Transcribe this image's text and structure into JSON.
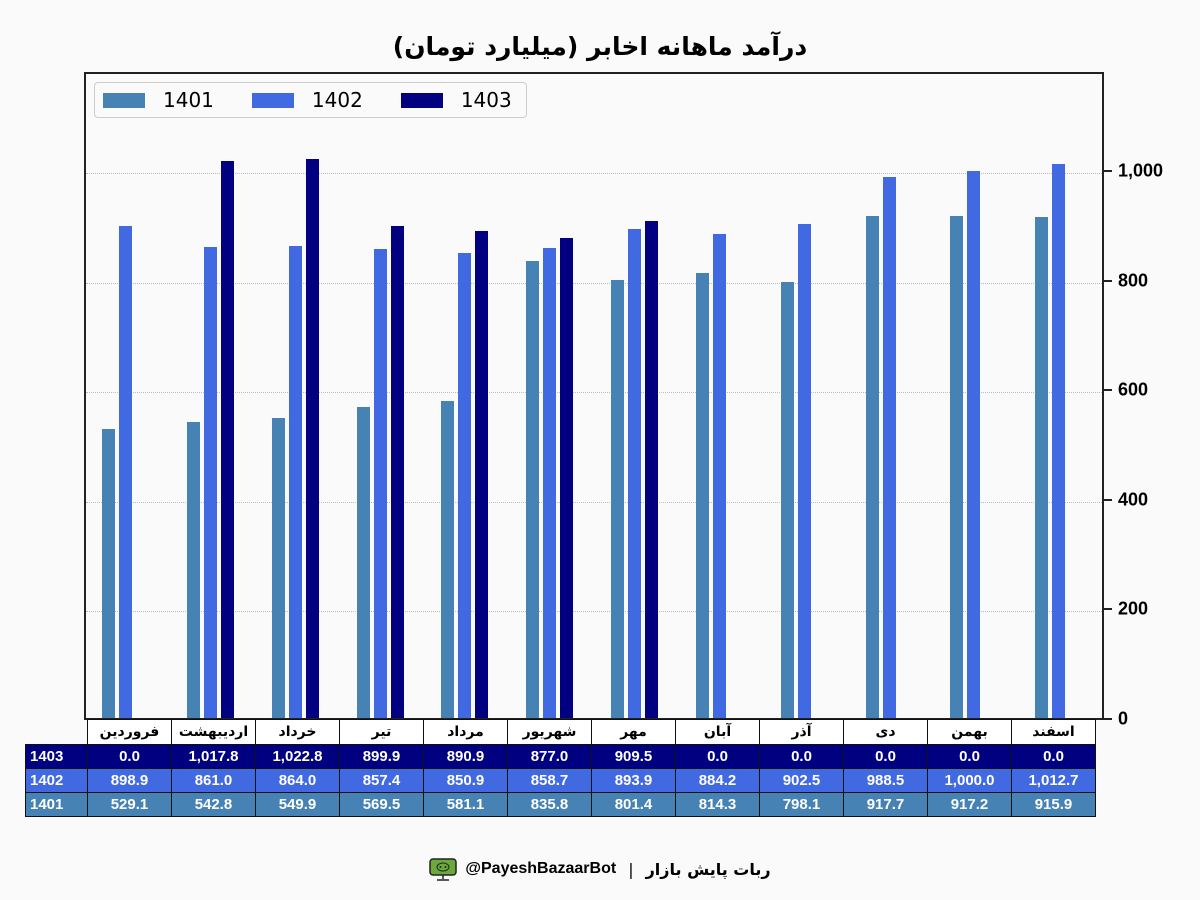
{
  "chart_data": {
    "type": "bar",
    "title": "درآمد ماهانه اخابر (میلیارد تومان)",
    "xlabel": "",
    "ylabel": "",
    "ylim": [
      0,
      1180
    ],
    "yticks": [
      0,
      200,
      400,
      600,
      800,
      1000
    ],
    "ytick_labels": [
      "0",
      "200",
      "400",
      "600",
      "800",
      "1,000"
    ],
    "y_axis_position": "right",
    "grid": "horizontal dotted",
    "legend_position": "upper left",
    "categories": [
      "فروردین",
      "اردیبهشت",
      "خرداد",
      "تیر",
      "مرداد",
      "شهریور",
      "مهر",
      "آبان",
      "آذر",
      "دی",
      "بهمن",
      "اسفند"
    ],
    "series": [
      {
        "name": "1401",
        "color": "#4682b4",
        "values": [
          529.1,
          542.8,
          549.9,
          569.5,
          581.1,
          835.8,
          801.4,
          814.3,
          798.1,
          917.7,
          917.2,
          915.9
        ]
      },
      {
        "name": "1402",
        "color": "#4169e1",
        "values": [
          898.9,
          861.0,
          864.0,
          857.4,
          850.9,
          858.7,
          893.9,
          884.2,
          902.5,
          988.5,
          1000.0,
          1012.7
        ]
      },
      {
        "name": "1403",
        "color": "#000080",
        "values": [
          0.0,
          1017.8,
          1022.8,
          899.9,
          890.9,
          877.0,
          909.5,
          0.0,
          0.0,
          0.0,
          0.0,
          0.0
        ]
      }
    ]
  },
  "table": {
    "rows": [
      {
        "label": "1403",
        "bg": "#000080",
        "cells": [
          "0.0",
          "1,017.8",
          "1,022.8",
          "899.9",
          "890.9",
          "877.0",
          "909.5",
          "0.0",
          "0.0",
          "0.0",
          "0.0",
          "0.0"
        ]
      },
      {
        "label": "1402",
        "bg": "#4169e1",
        "cells": [
          "898.9",
          "861.0",
          "864.0",
          "857.4",
          "850.9",
          "858.7",
          "893.9",
          "884.2",
          "902.5",
          "988.5",
          "1,000.0",
          "1,012.7"
        ]
      },
      {
        "label": "1401",
        "bg": "#4682b4",
        "cells": [
          "529.1",
          "542.8",
          "549.9",
          "569.5",
          "581.1",
          "835.8",
          "801.4",
          "814.3",
          "798.1",
          "917.7",
          "917.2",
          "915.9"
        ]
      }
    ]
  },
  "footer": {
    "icon": "monitor-bot-icon",
    "handle": "@PayeshBazaarBot",
    "separator": "|",
    "bot_name": "ربات پایش بازار"
  }
}
